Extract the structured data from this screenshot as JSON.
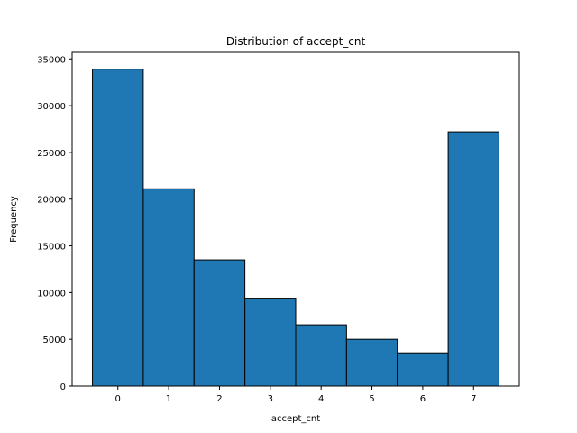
{
  "chart_data": {
    "type": "bar",
    "title": "Distribution of accept_cnt",
    "xlabel": "accept_cnt",
    "ylabel": "Frequency",
    "categories": [
      "0",
      "1",
      "2",
      "3",
      "4",
      "5",
      "6",
      "7"
    ],
    "values": [
      33900,
      21100,
      13500,
      9400,
      6550,
      5000,
      3550,
      27200
    ],
    "ylim": [
      0,
      35700
    ],
    "xlim": [
      -0.9,
      7.9
    ],
    "yticks": [
      0,
      5000,
      10000,
      15000,
      20000,
      25000,
      30000,
      35000
    ],
    "xticks": [
      0,
      1,
      2,
      3,
      4,
      5,
      6,
      7
    ],
    "grid": false,
    "bar_color": "#1f77b4",
    "edge_color": "#000000"
  }
}
